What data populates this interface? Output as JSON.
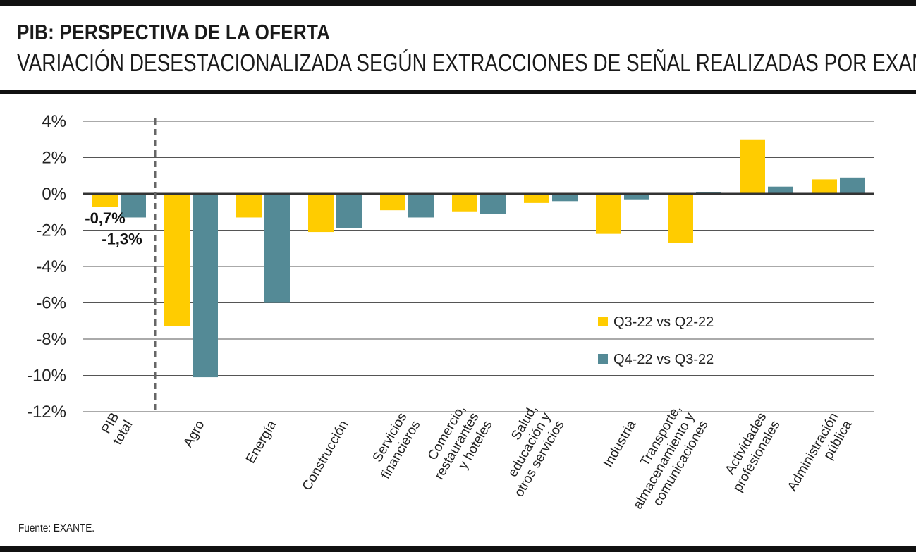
{
  "header": {
    "title": "PIB: PERSPECTIVA DE LA OFERTA",
    "subtitle": "VARIACIÓN DESESTACIONALIZADA SEGÚN EXTRACCIONES DE SEÑAL REALIZADAS POR EXANTE"
  },
  "footer": {
    "source": "Fuente: EXANTE."
  },
  "colors": {
    "series1": "#FFCC00",
    "series2": "#548A96",
    "grid": "#555555",
    "zero": "#333333"
  },
  "chart_data": {
    "type": "bar",
    "title": "PIB: PERSPECTIVA DE LA OFERTA",
    "subtitle": "VARIACIÓN DESESTACIONALIZADA SEGÚN EXTRACCIONES DE SEÑAL REALIZADAS POR EXANTE",
    "categories": [
      [
        "PIB",
        "total"
      ],
      [
        "Agro"
      ],
      [
        "Energía"
      ],
      [
        "Construcción"
      ],
      [
        "Servicios",
        "financieros"
      ],
      [
        "Comercio,",
        "restaurantes",
        "y hoteles"
      ],
      [
        "Salud,",
        "educación y",
        "otros servicios"
      ],
      [
        "Industria"
      ],
      [
        "Transporte,",
        "almacenamiento y",
        "comunicaciones"
      ],
      [
        "Actividades",
        "profesionales"
      ],
      [
        "Administración",
        "pública"
      ]
    ],
    "series": [
      {
        "name": "Q3-22 vs Q2-22",
        "color": "#FFCC00",
        "values": [
          -0.7,
          -7.3,
          -1.3,
          -2.1,
          -0.9,
          -1.0,
          -0.5,
          -2.2,
          -2.7,
          3.0,
          0.8
        ]
      },
      {
        "name": "Q4-22 vs Q3-22",
        "color": "#548A96",
        "values": [
          -1.3,
          -10.1,
          -6.0,
          -1.9,
          -1.3,
          -1.1,
          -0.4,
          -0.3,
          0.1,
          0.4,
          0.9
        ]
      }
    ],
    "data_labels": [
      {
        "series": 0,
        "index": 0,
        "text": "-0,7%"
      },
      {
        "series": 1,
        "index": 0,
        "text": "-1,3%"
      }
    ],
    "y_ticks": [
      4,
      2,
      0,
      -2,
      -4,
      -6,
      -8,
      -10,
      -12
    ],
    "y_tick_labels": [
      "4%",
      "2%",
      "0%",
      "-2%",
      "-4%",
      "-6%",
      "-8%",
      "-10%",
      "-12%"
    ],
    "ylim": [
      -12,
      4
    ],
    "grid": true,
    "separator_after_index": 0,
    "legend_position": "center-right"
  }
}
